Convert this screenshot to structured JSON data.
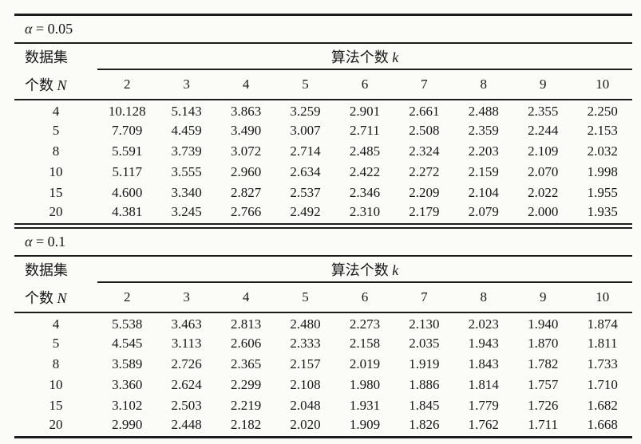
{
  "page": {
    "header": {
      "col1_line1": "数据集",
      "col1_line2_text": "个数 ",
      "col1_line2_var": "N",
      "span_text": "算法个数 ",
      "span_var": "k",
      "columns": [
        "2",
        "3",
        "4",
        "5",
        "6",
        "7",
        "8",
        "9",
        "10"
      ]
    },
    "sections": [
      {
        "alpha_symbol": "α",
        "alpha_rest": " = 0.05",
        "rows": [
          {
            "n": "4",
            "values": [
              "10.128",
              "5.143",
              "3.863",
              "3.259",
              "2.901",
              "2.661",
              "2.488",
              "2.355",
              "2.250"
            ]
          },
          {
            "n": "5",
            "values": [
              "7.709",
              "4.459",
              "3.490",
              "3.007",
              "2.711",
              "2.508",
              "2.359",
              "2.244",
              "2.153"
            ]
          },
          {
            "n": "8",
            "values": [
              "5.591",
              "3.739",
              "3.072",
              "2.714",
              "2.485",
              "2.324",
              "2.203",
              "2.109",
              "2.032"
            ]
          },
          {
            "n": "10",
            "values": [
              "5.117",
              "3.555",
              "2.960",
              "2.634",
              "2.422",
              "2.272",
              "2.159",
              "2.070",
              "1.998"
            ]
          },
          {
            "n": "15",
            "values": [
              "4.600",
              "3.340",
              "2.827",
              "2.537",
              "2.346",
              "2.209",
              "2.104",
              "2.022",
              "1.955"
            ]
          },
          {
            "n": "20",
            "values": [
              "4.381",
              "3.245",
              "2.766",
              "2.492",
              "2.310",
              "2.179",
              "2.079",
              "2.000",
              "1.935"
            ]
          }
        ]
      },
      {
        "alpha_symbol": "α",
        "alpha_rest": " = 0.1",
        "rows": [
          {
            "n": "4",
            "values": [
              "5.538",
              "3.463",
              "2.813",
              "2.480",
              "2.273",
              "2.130",
              "2.023",
              "1.940",
              "1.874"
            ]
          },
          {
            "n": "5",
            "values": [
              "4.545",
              "3.113",
              "2.606",
              "2.333",
              "2.158",
              "2.035",
              "1.943",
              "1.870",
              "1.811"
            ]
          },
          {
            "n": "8",
            "values": [
              "3.589",
              "2.726",
              "2.365",
              "2.157",
              "2.019",
              "1.919",
              "1.843",
              "1.782",
              "1.733"
            ]
          },
          {
            "n": "10",
            "values": [
              "3.360",
              "2.624",
              "2.299",
              "2.108",
              "1.980",
              "1.886",
              "1.814",
              "1.757",
              "1.710"
            ]
          },
          {
            "n": "15",
            "values": [
              "3.102",
              "2.503",
              "2.219",
              "2.048",
              "1.931",
              "1.845",
              "1.779",
              "1.726",
              "1.682"
            ]
          },
          {
            "n": "20",
            "values": [
              "2.990",
              "2.448",
              "2.182",
              "2.020",
              "1.909",
              "1.826",
              "1.762",
              "1.711",
              "1.668"
            ]
          }
        ]
      }
    ]
  }
}
